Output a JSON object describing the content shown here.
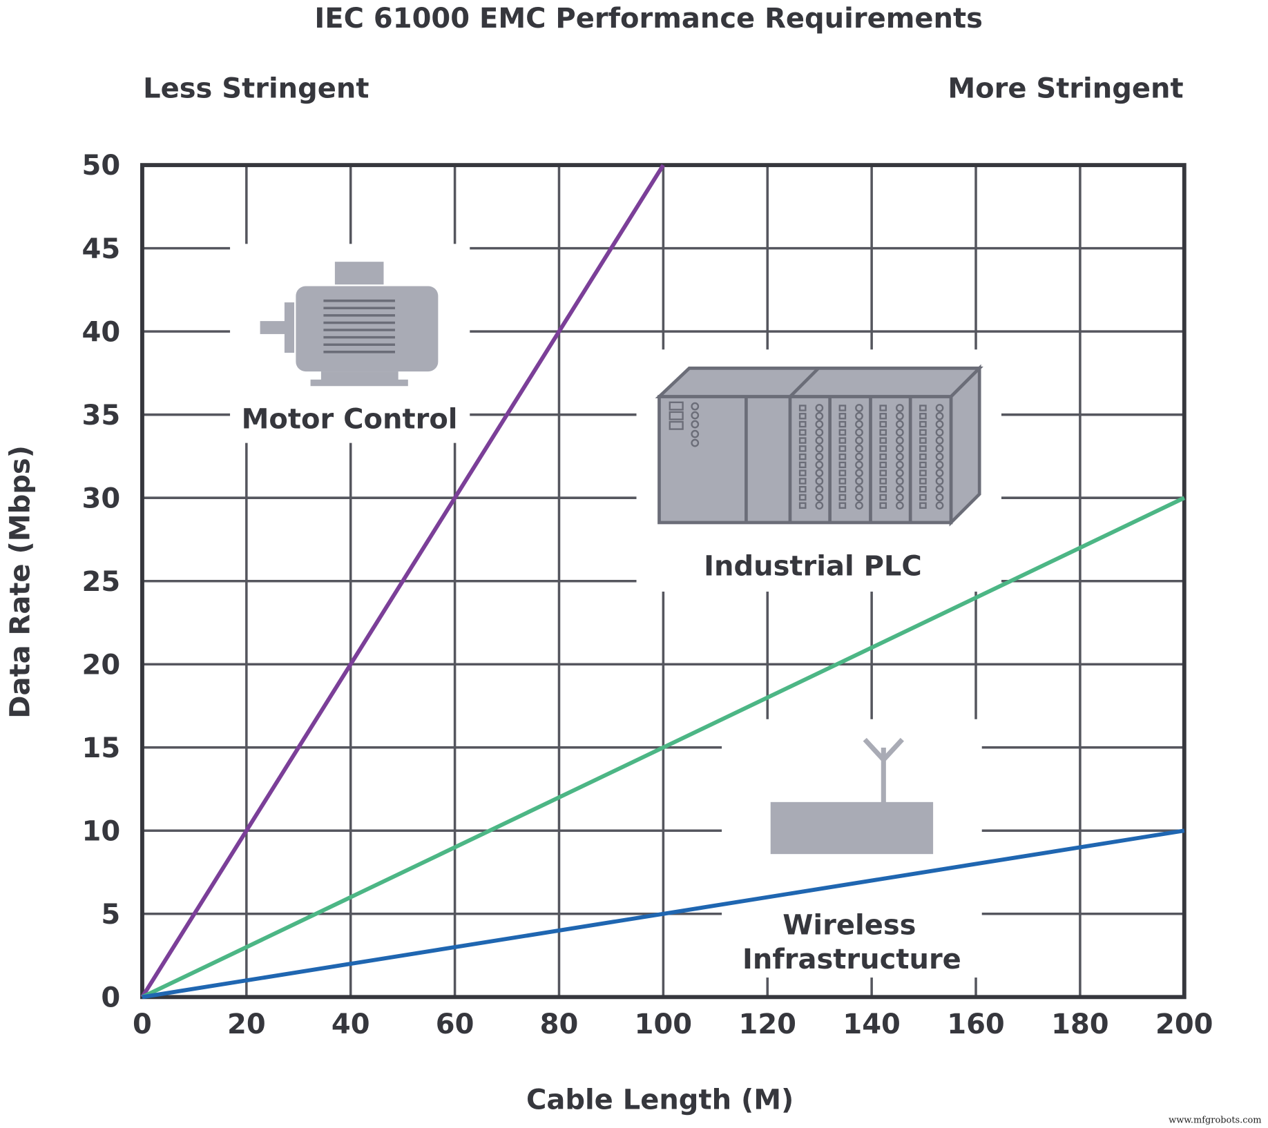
{
  "chart_data": {
    "type": "line",
    "title": "IEC 61000 EMC Performance Requirements",
    "left_annotation": "Less Stringent",
    "right_annotation": "More Stringent",
    "xlabel": "Cable Length (M)",
    "ylabel": "Data Rate (Mbps)",
    "xlim": [
      0,
      200
    ],
    "ylim": [
      0,
      50
    ],
    "xticks": [
      0,
      20,
      40,
      60,
      80,
      100,
      120,
      140,
      160,
      180,
      200
    ],
    "yticks": [
      0,
      5,
      10,
      15,
      20,
      25,
      30,
      35,
      40,
      45,
      50
    ],
    "grid": true,
    "series": [
      {
        "color": "#7b3f98",
        "x": [
          0,
          100
        ],
        "y": [
          0,
          50
        ]
      },
      {
        "color": "#4cb685",
        "x": [
          0,
          200
        ],
        "y": [
          0,
          30
        ]
      },
      {
        "color": "#1f66b1",
        "x": [
          0,
          200
        ],
        "y": [
          0,
          10
        ]
      }
    ],
    "labels": {
      "motor": "Motor Control",
      "plc": "Industrial PLC",
      "wireless_1": "Wireless",
      "wireless_2": "Infrastructure"
    },
    "icons": [
      "motor-icon",
      "plc-icon",
      "wireless-antenna-icon"
    ],
    "watermark": "www.mfgrobots.com"
  }
}
